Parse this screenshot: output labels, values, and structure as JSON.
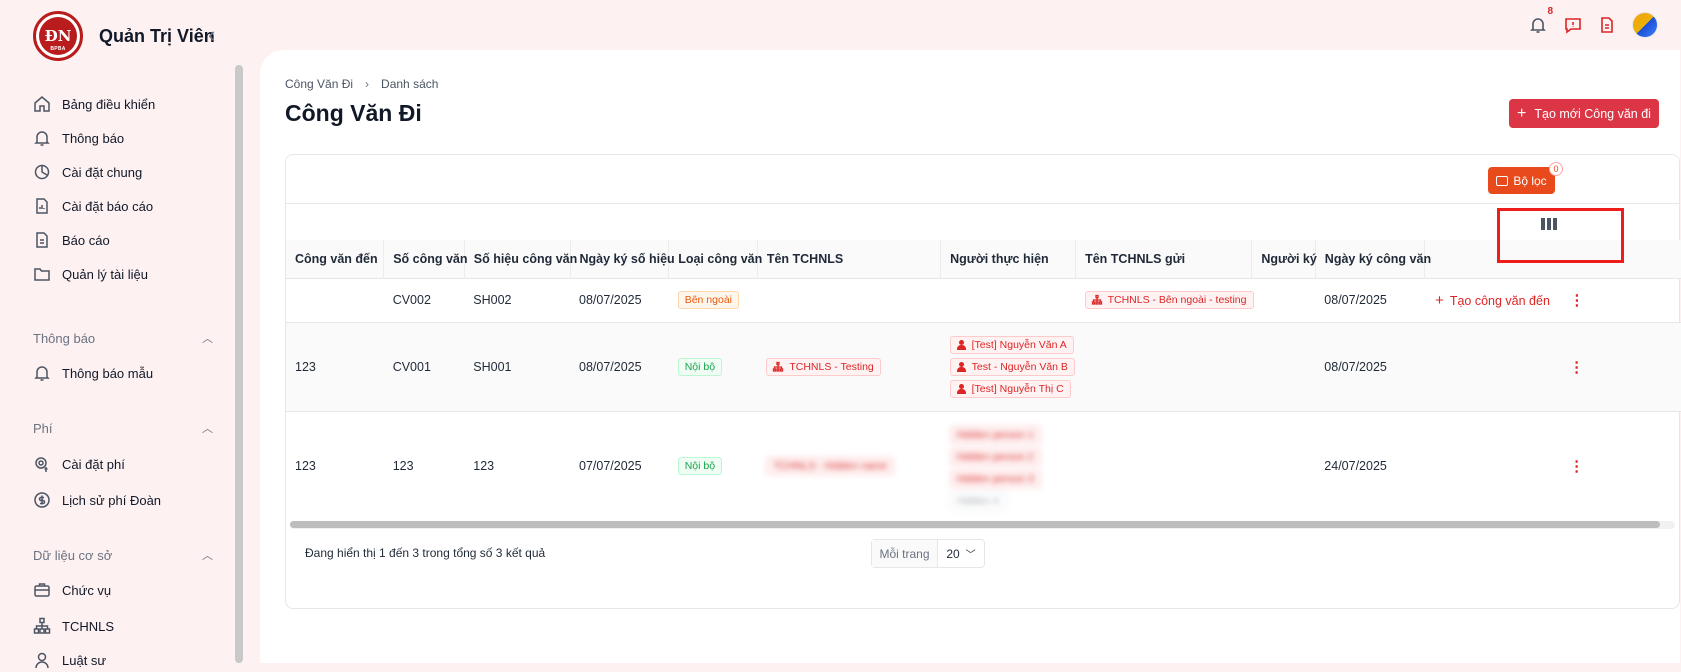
{
  "app": {
    "title": "Quản Trị Viên",
    "logo_text": "ĐN",
    "logo_sub": "BPBA"
  },
  "sidebar": {
    "items": [
      {
        "label": "Bảng điều khiển",
        "icon": "home-icon"
      },
      {
        "label": "Thông báo",
        "icon": "bell-icon"
      },
      {
        "label": "Cài đặt chung",
        "icon": "settings-icon"
      },
      {
        "label": "Cài đặt báo cáo",
        "icon": "report-settings-icon"
      },
      {
        "label": "Báo cáo",
        "icon": "document-icon"
      },
      {
        "label": "Quản lý tài liệu",
        "icon": "folder-icon"
      }
    ],
    "section_notify": {
      "title": "Thông báo",
      "items": [
        {
          "label": "Thông báo mẫu",
          "icon": "bell-icon"
        }
      ]
    },
    "section_fee": {
      "title": "Phí",
      "items": [
        {
          "label": "Cài đặt phí",
          "icon": "gear-dollar-icon"
        },
        {
          "label": "Lịch sử phí Đoàn",
          "icon": "dollar-icon"
        }
      ]
    },
    "section_data": {
      "title": "Dữ liệu cơ sở",
      "items": [
        {
          "label": "Chức vụ",
          "icon": "briefcase-icon"
        },
        {
          "label": "TCHNLS",
          "icon": "org-chart-icon"
        },
        {
          "label": "Luật sư",
          "icon": "user-icon"
        }
      ]
    }
  },
  "topbar": {
    "notification_count": "8"
  },
  "breadcrumb": {
    "parent": "Công Văn Đi",
    "current": "Danh sách"
  },
  "page": {
    "title": "Công Văn Đi",
    "create_button": "Tạo mới Công văn đi"
  },
  "filter": {
    "label": "Bộ lọc",
    "count": "0"
  },
  "table": {
    "headers": [
      "Công văn đến",
      "Số công văn",
      "Số hiệu công văn",
      "Ngày ký số hiệu",
      "Loại công văn",
      "Tên TCHNLS",
      "Người thực hiện",
      "Tên TCHNLS gửi",
      "Người ký",
      "Ngày ký công văn",
      ""
    ],
    "rows": [
      {
        "incoming": "",
        "number": "CV002",
        "code": "SH002",
        "sign_date": "08/07/2025",
        "type": "Bên ngoài",
        "org": "",
        "performers": [],
        "sender_org": "TCHNLS - Bên ngoài - testing",
        "signer": "",
        "doc_date": "08/07/2025",
        "action": "Tạo công văn đến"
      },
      {
        "incoming": "123",
        "number": "CV001",
        "code": "SH001",
        "sign_date": "08/07/2025",
        "type": "Nội bộ",
        "org": "TCHNLS - Testing",
        "performers": [
          "[Test] Nguyễn Văn A",
          "Test - Nguyễn Văn B",
          "[Test] Nguyễn Thị C"
        ],
        "sender_org": "",
        "signer": "",
        "doc_date": "08/07/2025",
        "action": ""
      },
      {
        "incoming": "123",
        "number": "123",
        "code": "123",
        "sign_date": "07/07/2025",
        "type": "Nội bộ",
        "org": "TCHNLS - Hidden name",
        "performers": [
          "Hidden person 1",
          "Hidden person 2",
          "Hidden person 3",
          "Hidden 4"
        ],
        "sender_org": "",
        "signer": "",
        "doc_date": "24/07/2025",
        "action": ""
      }
    ]
  },
  "footer": {
    "summary": "Đang hiển thị 1 đến 3 trong tổng số 3 kết quả",
    "per_page_label": "Mỗi trang",
    "per_page_value": "20"
  },
  "colors": {
    "primary": "#dc3545",
    "filter": "#e84a1c",
    "highlight": "#ef1c1c"
  }
}
